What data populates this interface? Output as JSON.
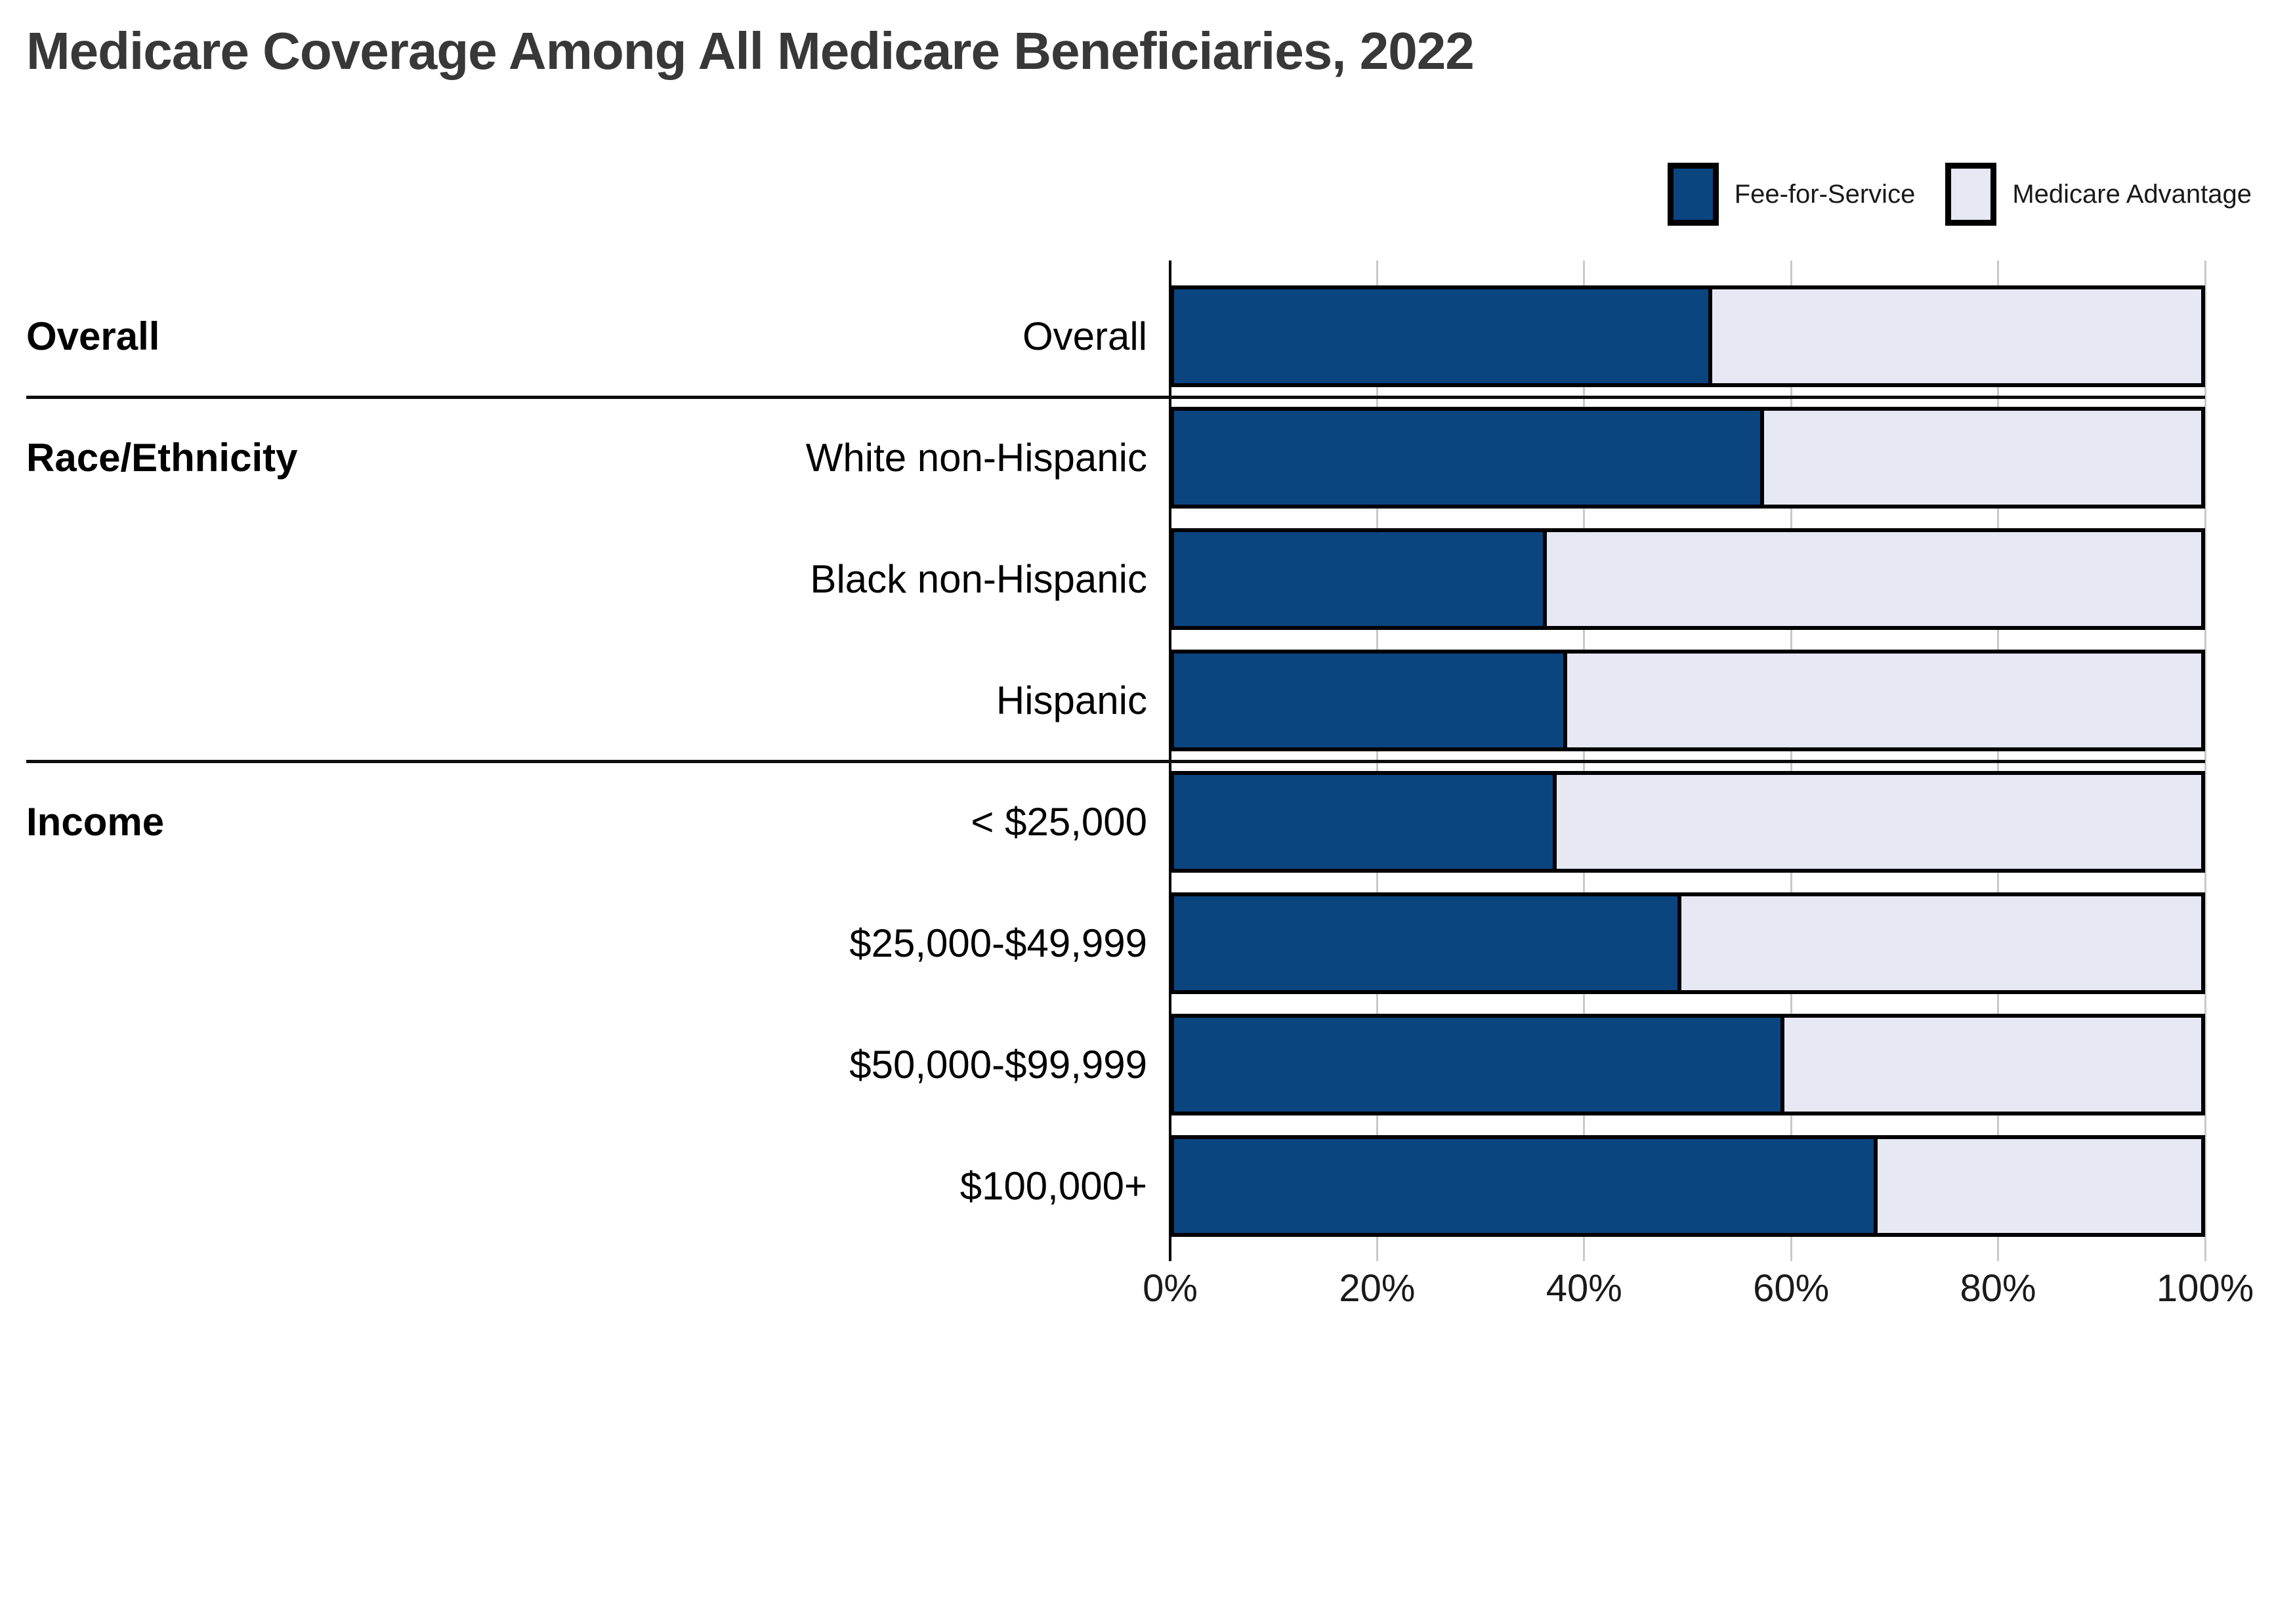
{
  "title": "Medicare Coverage Among All Medicare Beneficiaries, 2022",
  "legend": [
    {
      "label": "Fee-for-Service",
      "color": "#0b4580"
    },
    {
      "label": "Medicare Advantage",
      "color": "#e6e9f4"
    }
  ],
  "chart_data": {
    "type": "bar",
    "stacked": true,
    "orientation": "horizontal",
    "title": "Medicare Coverage Among All Medicare Beneficiaries, 2022",
    "xlabel": "",
    "ylabel": "",
    "xlim": [
      0,
      100
    ],
    "grid": true,
    "legend_position": "top-right",
    "x_ticks": [
      "0%",
      "20%",
      "40%",
      "60%",
      "80%",
      "100%"
    ],
    "x_tick_values": [
      0,
      20,
      40,
      60,
      80,
      100
    ],
    "categories": [
      "Overall",
      "White non-Hispanic",
      "Black non-Hispanic",
      "Hispanic",
      "< $25,000",
      "$25,000-$49,999",
      "$50,000-$99,999",
      "$100,000+"
    ],
    "series": [
      {
        "name": "Fee-for-Service",
        "color": "#0b4580",
        "values": [
          52,
          57,
          36,
          38,
          37,
          49,
          59,
          68
        ]
      },
      {
        "name": "Medicare Advantage",
        "color": "#e6e9f4",
        "values": [
          48,
          43,
          64,
          62,
          63,
          51,
          41,
          32
        ]
      }
    ],
    "sections": [
      {
        "label": "Overall",
        "first_row": 0,
        "rows": [
          0
        ]
      },
      {
        "label": "Race/Ethnicity",
        "first_row": 1,
        "rows": [
          1,
          2,
          3
        ]
      },
      {
        "label": "Income",
        "first_row": 4,
        "rows": [
          4,
          5,
          6,
          7
        ]
      }
    ],
    "colors": {
      "fee_for_service": "#0b4580",
      "medicare_advantage": "#e6e9f4",
      "bar_border": "#000000",
      "gridline": "#c9c9c9",
      "axis": "#000000",
      "title_text": "#383838"
    }
  }
}
